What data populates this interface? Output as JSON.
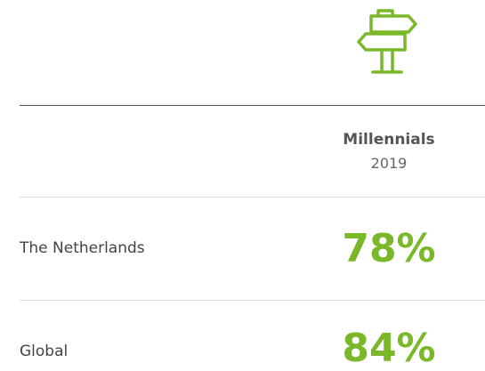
{
  "table": {
    "header": {
      "title": "Millennials",
      "subtitle": "2019"
    },
    "rows": [
      [
        "The Netherlands",
        "78%"
      ],
      [
        "Global",
        "84%"
      ]
    ]
  }
}
